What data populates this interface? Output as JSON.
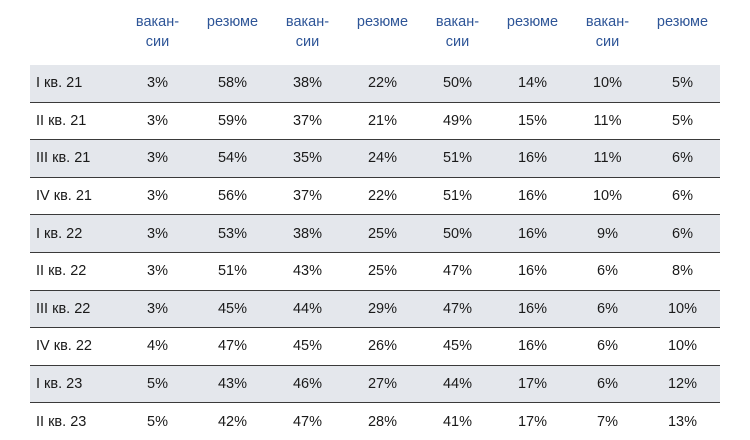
{
  "chart_data": {
    "type": "table",
    "columns": [
      "вакан-\nсии",
      "резюме",
      "вакан-\nсии",
      "резюме",
      "вакан-\nсии",
      "резюме",
      "вакан-\nсии",
      "резюме"
    ],
    "rows": [
      {
        "label": "I кв. 21",
        "cells": [
          "3%",
          "58%",
          "38%",
          "22%",
          "50%",
          "14%",
          "10%",
          "5%"
        ]
      },
      {
        "label": "II кв. 21",
        "cells": [
          "3%",
          "59%",
          "37%",
          "21%",
          "49%",
          "15%",
          "11%",
          "5%"
        ]
      },
      {
        "label": "III кв. 21",
        "cells": [
          "3%",
          "54%",
          "35%",
          "24%",
          "51%",
          "16%",
          "11%",
          "6%"
        ]
      },
      {
        "label": "IV кв. 21",
        "cells": [
          "3%",
          "56%",
          "37%",
          "22%",
          "51%",
          "16%",
          "10%",
          "6%"
        ]
      },
      {
        "label": "I кв. 22",
        "cells": [
          "3%",
          "53%",
          "38%",
          "25%",
          "50%",
          "16%",
          "9%",
          "6%"
        ]
      },
      {
        "label": "II кв. 22",
        "cells": [
          "3%",
          "51%",
          "43%",
          "25%",
          "47%",
          "16%",
          "6%",
          "8%"
        ]
      },
      {
        "label": "III кв. 22",
        "cells": [
          "3%",
          "45%",
          "44%",
          "29%",
          "47%",
          "16%",
          "6%",
          "10%"
        ]
      },
      {
        "label": "IV кв. 22",
        "cells": [
          "4%",
          "47%",
          "45%",
          "26%",
          "45%",
          "16%",
          "6%",
          "10%"
        ]
      },
      {
        "label": "I кв. 23",
        "cells": [
          "5%",
          "43%",
          "46%",
          "27%",
          "44%",
          "17%",
          "6%",
          "12%"
        ]
      },
      {
        "label": "II кв. 23",
        "cells": [
          "5%",
          "42%",
          "47%",
          "28%",
          "41%",
          "17%",
          "7%",
          "13%"
        ]
      }
    ],
    "colors": {
      "header_text": "#2e5597",
      "shaded_row": "#e4e7ec",
      "row_rule": "#3a3a3a"
    }
  }
}
